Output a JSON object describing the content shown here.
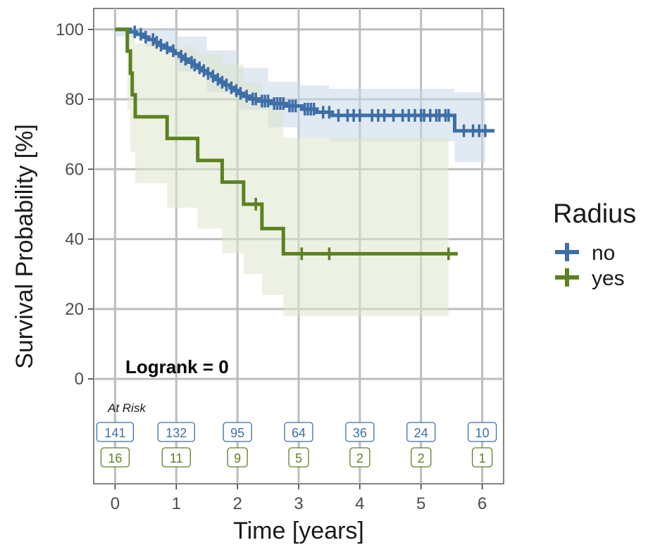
{
  "chart_data": {
    "type": "line",
    "subtype": "kaplan-meier",
    "xlabel": "Time [years]",
    "ylabel": "Survival Probability [%]",
    "xlim": [
      -0.35,
      6.35
    ],
    "ylim": [
      -30,
      106
    ],
    "xticks": [
      0,
      1,
      2,
      3,
      4,
      5,
      6
    ],
    "xtick_labels": [
      "0",
      "1",
      "2",
      "3",
      "4",
      "5",
      "6"
    ],
    "yticks": [
      0,
      20,
      40,
      60,
      80,
      100
    ],
    "ytick_labels": [
      "0",
      "20",
      "40",
      "60",
      "80",
      "100"
    ],
    "grid": true,
    "annotation": "Logrank = 0",
    "legend": {
      "title": "Radius",
      "position": "right"
    },
    "series": [
      {
        "name": "no",
        "color": "#3d6ea8",
        "steps": [
          [
            0,
            100
          ],
          [
            0.25,
            99.3
          ],
          [
            0.35,
            98.6
          ],
          [
            0.45,
            97.8
          ],
          [
            0.55,
            97.1
          ],
          [
            0.65,
            96.3
          ],
          [
            0.72,
            95.5
          ],
          [
            0.8,
            94.7
          ],
          [
            0.9,
            93.9
          ],
          [
            0.98,
            93.1
          ],
          [
            1.05,
            92.3
          ],
          [
            1.12,
            91.5
          ],
          [
            1.2,
            90.6
          ],
          [
            1.28,
            89.8
          ],
          [
            1.35,
            89.0
          ],
          [
            1.42,
            88.2
          ],
          [
            1.5,
            87.4
          ],
          [
            1.58,
            86.6
          ],
          [
            1.65,
            85.7
          ],
          [
            1.72,
            84.9
          ],
          [
            1.8,
            84.1
          ],
          [
            1.88,
            83.3
          ],
          [
            1.95,
            82.5
          ],
          [
            2.02,
            81.7
          ],
          [
            2.1,
            80.9
          ],
          [
            2.2,
            80.1
          ],
          [
            2.35,
            79.5
          ],
          [
            2.55,
            78.8
          ],
          [
            2.8,
            78.1
          ],
          [
            3.05,
            77.2
          ],
          [
            3.3,
            76.3
          ],
          [
            3.55,
            75.4
          ],
          [
            5.5,
            75.4
          ],
          [
            5.55,
            71
          ],
          [
            6.2,
            71
          ]
        ],
        "censor": [
          0.32,
          0.42,
          0.5,
          0.62,
          0.68,
          0.75,
          0.85,
          0.95,
          1.08,
          1.15,
          1.25,
          1.3,
          1.38,
          1.45,
          1.52,
          1.6,
          1.68,
          1.75,
          1.82,
          1.9,
          1.98,
          2.05,
          2.15,
          2.25,
          2.3,
          2.4,
          2.45,
          2.5,
          2.6,
          2.65,
          2.7,
          2.75,
          2.85,
          2.9,
          2.95,
          3.1,
          3.15,
          3.2,
          3.25,
          3.4,
          3.5,
          3.65,
          3.8,
          3.9,
          4.0,
          4.2,
          4.3,
          4.4,
          4.55,
          4.7,
          4.8,
          4.9,
          5.0,
          5.05,
          5.15,
          5.25,
          5.3,
          5.4,
          5.45,
          5.7,
          5.85,
          5.95,
          6.05
        ],
        "ci_lower": [
          [
            0,
            98
          ],
          [
            0.5,
            95
          ],
          [
            1.0,
            88
          ],
          [
            1.5,
            82
          ],
          [
            2.0,
            77
          ],
          [
            2.5,
            72
          ],
          [
            3.0,
            69
          ],
          [
            3.5,
            68
          ],
          [
            5.5,
            68
          ],
          [
            5.55,
            62
          ],
          [
            6.05,
            62
          ]
        ],
        "ci_upper": [
          [
            0,
            100
          ],
          [
            0.5,
            100
          ],
          [
            1.0,
            98
          ],
          [
            1.5,
            94
          ],
          [
            2.0,
            89
          ],
          [
            2.5,
            85
          ],
          [
            3.0,
            84
          ],
          [
            3.5,
            83
          ],
          [
            5.5,
            83
          ],
          [
            5.55,
            82
          ],
          [
            6.05,
            82
          ]
        ]
      },
      {
        "name": "yes",
        "color": "#5b8220",
        "steps": [
          [
            0,
            100
          ],
          [
            0.2,
            93.8
          ],
          [
            0.25,
            87.5
          ],
          [
            0.28,
            81.3
          ],
          [
            0.33,
            75
          ],
          [
            0.85,
            68.8
          ],
          [
            1.35,
            62.5
          ],
          [
            1.75,
            56.3
          ],
          [
            2.1,
            50
          ],
          [
            2.4,
            43
          ],
          [
            2.75,
            35.8
          ],
          [
            5.6,
            35.8
          ]
        ],
        "censor": [
          2.3,
          3.05,
          3.5,
          5.45
        ],
        "ci_lower": [
          [
            0,
            100
          ],
          [
            0.2,
            77
          ],
          [
            0.25,
            65
          ],
          [
            0.33,
            56
          ],
          [
            0.85,
            49
          ],
          [
            1.35,
            43
          ],
          [
            1.75,
            36
          ],
          [
            2.1,
            30
          ],
          [
            2.4,
            24
          ],
          [
            2.75,
            18
          ],
          [
            5.45,
            18
          ]
        ],
        "ci_upper": [
          [
            0,
            100
          ],
          [
            0.2,
            100
          ],
          [
            0.33,
            96
          ],
          [
            0.85,
            95
          ],
          [
            1.35,
            93
          ],
          [
            1.75,
            90
          ],
          [
            2.1,
            85
          ],
          [
            2.4,
            80
          ],
          [
            2.75,
            69
          ],
          [
            5.45,
            69
          ]
        ]
      }
    ],
    "at_risk": {
      "title": "At Risk",
      "times": [
        0,
        1,
        2,
        3,
        4,
        5,
        6
      ],
      "rows": [
        {
          "series": "no",
          "values": [
            "141",
            "132",
            "95",
            "64",
            "36",
            "24",
            "10"
          ]
        },
        {
          "series": "yes",
          "values": [
            "16",
            "11",
            "9",
            "5",
            "2",
            "2",
            "1"
          ]
        }
      ]
    }
  }
}
